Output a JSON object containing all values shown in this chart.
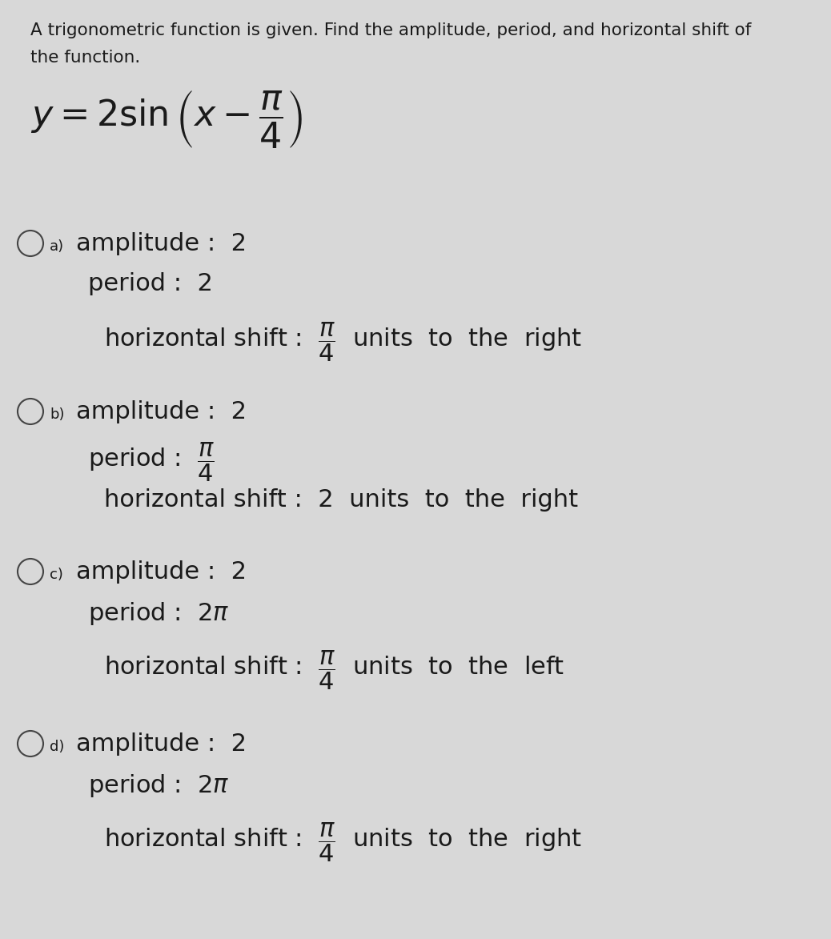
{
  "bg_color": "#d8d8d8",
  "title_line1": "A trigonometric function is given. Find the amplitude, period, and horizontal shift of",
  "title_line2": "the function.",
  "function_latex": "$y = 2\\sin\\left(x - \\dfrac{\\pi}{4}\\right)$",
  "options": [
    {
      "label": "a)",
      "amp_line": "amplitude :  2",
      "per_line": "period :  2",
      "hor_line": "horizontal shift :  $\\dfrac{\\pi}{4}$  units  to  the  right"
    },
    {
      "label": "b)",
      "amp_line": "amplitude :  2",
      "per_line": "period :  $\\dfrac{\\pi}{4}$",
      "hor_line": "horizontal shift :  2  units  to  the  right"
    },
    {
      "label": "c)",
      "amp_line": "amplitude :  2",
      "per_line": "period :  $2\\pi$",
      "hor_line": "horizontal shift :  $\\dfrac{\\pi}{4}$  units  to  the  left"
    },
    {
      "label": "d)",
      "amp_line": "amplitude :  2",
      "per_line": "period :  $2\\pi$",
      "hor_line": "horizontal shift :  $\\dfrac{\\pi}{4}$  units  to  the  right"
    }
  ],
  "font_size_title": 15.5,
  "font_size_formula": 32,
  "font_size_option_label": 13,
  "font_size_amplitude": 22,
  "font_size_period": 22,
  "font_size_hshift": 22
}
